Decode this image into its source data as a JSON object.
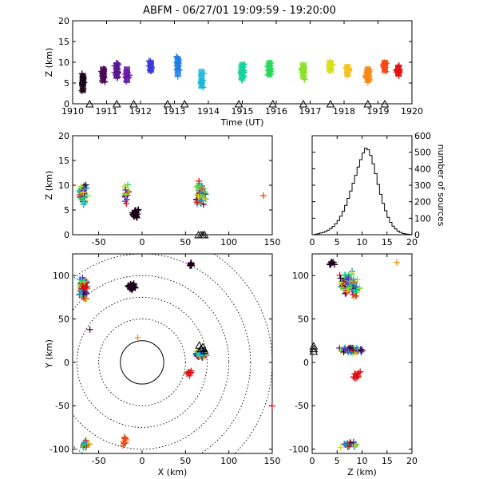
{
  "title": "ABFM - 06/27/01 19:09:59 - 19:20:00",
  "time_color_scale": [
    "#1a001a",
    "#4b0a55",
    "#6a1aa8",
    "#3b3bd8",
    "#1f7fe6",
    "#18b8d8",
    "#18d2a0",
    "#2ad85a",
    "#8ae02a",
    "#d8e018",
    "#f6c218",
    "#f68a18",
    "#f04a14",
    "#e01010"
  ],
  "chart_data": [
    {
      "type": "scatter",
      "panel": "height-time",
      "xlabel": "Time (UT)",
      "ylabel": "Z (km)",
      "xlim": [
        1910,
        1920
      ],
      "ylim": [
        0,
        20
      ],
      "x_ticks": [
        "1910",
        "1911",
        "1912",
        "1913",
        "1914",
        "1915",
        "1916",
        "1917",
        "1918",
        "1919",
        "1920"
      ],
      "y_ticks": [
        "0",
        "5",
        "10",
        "15",
        "20"
      ],
      "marker": "+",
      "clusters": [
        {
          "x": 1910.3,
          "y_mean": 5,
          "y_spread": 3,
          "n": 22,
          "color": "#1a001a"
        },
        {
          "x": 1910.9,
          "y_mean": 7,
          "y_spread": 2.5,
          "n": 22,
          "color": "#4b0a55"
        },
        {
          "x": 1911.3,
          "y_mean": 8,
          "y_spread": 2.5,
          "n": 20,
          "color": "#5a1590"
        },
        {
          "x": 1911.6,
          "y_mean": 7,
          "y_spread": 2.5,
          "n": 16,
          "color": "#6a1aa8"
        },
        {
          "x": 1912.3,
          "y_mean": 9,
          "y_spread": 2,
          "n": 14,
          "color": "#3b3bd8"
        },
        {
          "x": 1913.1,
          "y_mean": 9,
          "y_spread": 3,
          "n": 18,
          "color": "#1f7fe6"
        },
        {
          "x": 1913.8,
          "y_mean": 6,
          "y_spread": 3,
          "n": 10,
          "color": "#18b8d8"
        },
        {
          "x": 1915.0,
          "y_mean": 8,
          "y_spread": 2.5,
          "n": 32,
          "color": "#18d2a0"
        },
        {
          "x": 1915.8,
          "y_mean": 8.5,
          "y_spread": 2.5,
          "n": 30,
          "color": "#2ad85a"
        },
        {
          "x": 1916.8,
          "y_mean": 8,
          "y_spread": 2.5,
          "n": 22,
          "color": "#8ae02a"
        },
        {
          "x": 1917.6,
          "y_mean": 9,
          "y_spread": 2,
          "n": 20,
          "color": "#d8e018"
        },
        {
          "x": 1918.1,
          "y_mean": 8,
          "y_spread": 2,
          "n": 14,
          "color": "#f6c218"
        },
        {
          "x": 1918.7,
          "y_mean": 7,
          "y_spread": 2.5,
          "n": 36,
          "color": "#f68a18"
        },
        {
          "x": 1919.2,
          "y_mean": 9,
          "y_spread": 2,
          "n": 14,
          "color": "#f04a14"
        },
        {
          "x": 1919.6,
          "y_mean": 8,
          "y_spread": 1.8,
          "n": 14,
          "color": "#e01010"
        }
      ],
      "ground_markers_x": [
        1910.5,
        1911.3,
        1911.8,
        1912.8,
        1913.3,
        1914.9,
        1915.9,
        1916.8,
        1917.6,
        1918.7,
        1919.2
      ]
    },
    {
      "type": "scatter",
      "panel": "height-x",
      "xlabel": "",
      "ylabel": "Z (km)",
      "xlim": [
        -80,
        150
      ],
      "ylim": [
        0,
        20
      ],
      "x_ticks": [
        "-50",
        "0",
        "50",
        "100",
        "150"
      ],
      "y_ticks": [
        "0",
        "5",
        "10",
        "15",
        "20"
      ],
      "marker": "+",
      "clusters": [
        {
          "x_mean": -68,
          "x_spread": 6,
          "y_mean": 8,
          "y_spread": 3,
          "n": 55,
          "color": "mixed"
        },
        {
          "x_mean": -18,
          "x_spread": 4,
          "y_mean": 8,
          "y_spread": 3,
          "n": 16,
          "color": "mixed"
        },
        {
          "x_mean": -8,
          "x_spread": 5,
          "y_mean": 4,
          "y_spread": 1.8,
          "n": 24,
          "color": "#1a001a"
        },
        {
          "x_mean": 67,
          "x_spread": 8,
          "y_mean": 8,
          "y_spread": 3.5,
          "n": 70,
          "color": "mixed"
        },
        {
          "x_mean": 140,
          "x_spread": 1,
          "y_mean": 8,
          "y_spread": 0.5,
          "n": 1,
          "color": "#f04a14"
        }
      ],
      "ground_markers_x": [
        65,
        68,
        70,
        72
      ]
    },
    {
      "type": "bar",
      "panel": "source-altitude-histogram",
      "xlabel": "",
      "ylabel": "number of sources",
      "xlim": [
        0,
        20
      ],
      "ylim": [
        0,
        600
      ],
      "x_ticks": [
        "0",
        "5",
        "10",
        "15",
        "20"
      ],
      "y_ticks": [
        "0",
        "100",
        "200",
        "300",
        "400",
        "500",
        "600"
      ],
      "bin_width_km": 0.5,
      "bin_start": 0,
      "values": [
        0,
        3,
        6,
        10,
        14,
        20,
        28,
        38,
        50,
        66,
        86,
        112,
        142,
        178,
        220,
        265,
        312,
        360,
        410,
        455,
        495,
        525,
        515,
        480,
        430,
        370,
        305,
        245,
        190,
        145,
        105,
        75,
        52,
        35,
        22,
        14,
        8,
        5,
        3,
        1
      ]
    },
    {
      "type": "scatter",
      "panel": "plan-view",
      "xlabel": "X (km)",
      "ylabel": "Y (km)",
      "xlim": [
        -80,
        150
      ],
      "ylim": [
        -105,
        125
      ],
      "x_ticks": [
        "-50",
        "0",
        "50",
        "100",
        "150"
      ],
      "y_ticks": [
        "-100",
        "-50",
        "0",
        "50",
        "100"
      ],
      "range_rings_km": [
        25,
        50,
        75,
        100,
        125,
        150
      ],
      "marker": "+",
      "clusters": [
        {
          "x_mean": -68,
          "x_spread": 7,
          "y_mean": 85,
          "y_spread": 18,
          "n": 70,
          "color": "mixed"
        },
        {
          "x_mean": -12,
          "x_spread": 5,
          "y_mean": 87,
          "y_spread": 6,
          "n": 30,
          "color": "#1a001a"
        },
        {
          "x_mean": 56,
          "x_spread": 3,
          "y_mean": 113,
          "y_spread": 4,
          "n": 10,
          "color": "#1a001a"
        },
        {
          "x_mean": 68,
          "x_spread": 7,
          "y_mean": 10,
          "y_spread": 6,
          "n": 60,
          "color": "mixed"
        },
        {
          "x_mean": 55,
          "x_spread": 5,
          "y_mean": -12,
          "y_spread": 5,
          "n": 10,
          "color": "#e01010"
        },
        {
          "x_mean": -65,
          "x_spread": 6,
          "y_mean": -95,
          "y_spread": 7,
          "n": 18,
          "color": "mixed"
        },
        {
          "x_mean": -20,
          "x_spread": 3,
          "y_mean": -90,
          "y_spread": 10,
          "n": 10,
          "color": "#f04a14"
        },
        {
          "x_mean": -5,
          "x_spread": 0.5,
          "y_mean": 28,
          "y_spread": 0.5,
          "n": 1,
          "color": "#f68a18"
        },
        {
          "x_mean": -60,
          "x_spread": 1,
          "y_mean": 38,
          "y_spread": 1,
          "n": 1,
          "color": "#4b0a55"
        },
        {
          "x_mean": 150,
          "x_spread": 0.5,
          "y_mean": -50,
          "y_spread": 0.5,
          "n": 1,
          "color": "#e01010"
        }
      ],
      "ground_markers": [
        [
          68,
          15
        ],
        [
          70,
          17
        ],
        [
          72,
          13
        ],
        [
          66,
          19
        ]
      ]
    },
    {
      "type": "scatter",
      "panel": "y-height",
      "xlabel": "Z (km)",
      "ylabel": "",
      "xlim": [
        0,
        20
      ],
      "ylim": [
        -105,
        125
      ],
      "x_ticks": [
        "0",
        "5",
        "10",
        "15",
        "20"
      ],
      "y_ticks": [
        "-100",
        "-50",
        "0",
        "50",
        "100"
      ],
      "marker": "+",
      "clusters": [
        {
          "x_mean": 7.5,
          "x_spread": 3,
          "y_mean": 90,
          "y_spread": 18,
          "n": 90,
          "color": "mixed"
        },
        {
          "x_mean": 8,
          "x_spread": 3,
          "y_mean": 14,
          "y_spread": 4,
          "n": 60,
          "color": "mixed"
        },
        {
          "x_mean": 9,
          "x_spread": 1.5,
          "y_mean": -15,
          "y_spread": 8,
          "n": 12,
          "color": "#e01010"
        },
        {
          "x_mean": 8,
          "x_spread": 3,
          "y_mean": -95,
          "y_spread": 6,
          "n": 22,
          "color": "mixed"
        },
        {
          "x_mean": 4,
          "x_spread": 1,
          "y_mean": 115,
          "y_spread": 4,
          "n": 8,
          "color": "#1a001a"
        },
        {
          "x_mean": 17,
          "x_spread": 0.5,
          "y_mean": 115,
          "y_spread": 0.5,
          "n": 1,
          "color": "#f68a18"
        }
      ],
      "ground_markers": [
        [
          0.3,
          15
        ],
        [
          0.3,
          18
        ],
        [
          0.3,
          12
        ]
      ]
    }
  ]
}
